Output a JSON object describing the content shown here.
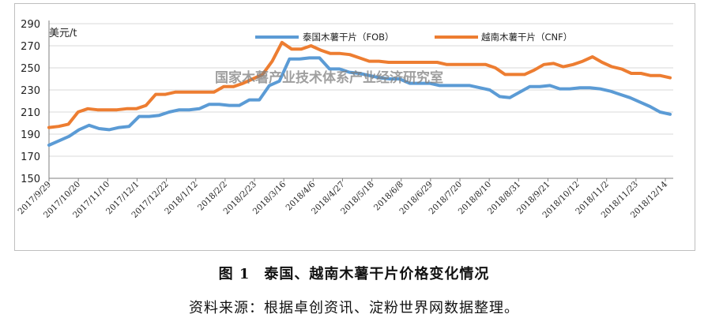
{
  "figure": {
    "number": "图 1",
    "caption": "泰国、越南木薯干片价格变化情况",
    "source": "资料来源：根据卓创资讯、淀粉世界网数据整理。",
    "watermark": "国家木薯产业技术体系产业经济研究室"
  },
  "chart_data": {
    "type": "line",
    "unit_label": "美元/t",
    "ylim": [
      150,
      290
    ],
    "yticks": [
      150,
      170,
      190,
      210,
      230,
      250,
      270,
      290
    ],
    "xtick_labels": [
      "2017/9/29",
      "2017/10/20",
      "2017/11/10",
      "2017/12/1",
      "2017/12/22",
      "2018/1/12",
      "2018/2/2",
      "2018/2/23",
      "2018/3/16",
      "2018/4/6",
      "2018/4/27",
      "2018/5/18",
      "2018/6/8",
      "2018/6/29",
      "2018/7/20",
      "2018/8/10",
      "2018/8/31",
      "2018/9/21",
      "2018/10/12",
      "2018/11/2",
      "2018/11/23",
      "2018/12/14"
    ],
    "grid": true,
    "legend_position": "top",
    "series": [
      {
        "name": "泰国木薯干片（FOB）",
        "color": "#5b9bd5",
        "values": [
          180,
          184,
          188,
          194,
          198,
          195,
          194,
          196,
          197,
          206,
          206,
          207,
          210,
          212,
          212,
          213,
          217,
          217,
          216,
          216,
          221,
          221,
          234,
          238,
          258,
          258,
          259,
          259,
          249,
          249,
          246,
          245,
          243,
          241,
          240,
          240,
          236,
          236,
          236,
          234,
          234,
          234,
          234,
          232,
          230,
          224,
          223,
          228,
          233,
          233,
          234,
          231,
          231,
          232,
          232,
          231,
          229,
          226,
          223,
          219,
          215,
          210,
          208
        ]
      },
      {
        "name": "越南木薯干片（CNF）",
        "color": "#ed7d31",
        "values": [
          196,
          197,
          199,
          210,
          213,
          212,
          212,
          212,
          213,
          213,
          216,
          226,
          226,
          228,
          228,
          228,
          228,
          228,
          233,
          233,
          236,
          240,
          244,
          256,
          273,
          267,
          267,
          270,
          266,
          263,
          263,
          262,
          259,
          256,
          256,
          255,
          255,
          255,
          255,
          255,
          255,
          253,
          253,
          253,
          253,
          253,
          250,
          244,
          244,
          244,
          248,
          253,
          254,
          251,
          253,
          256,
          260,
          255,
          251,
          249,
          245,
          245,
          243,
          243,
          241
        ]
      }
    ]
  }
}
